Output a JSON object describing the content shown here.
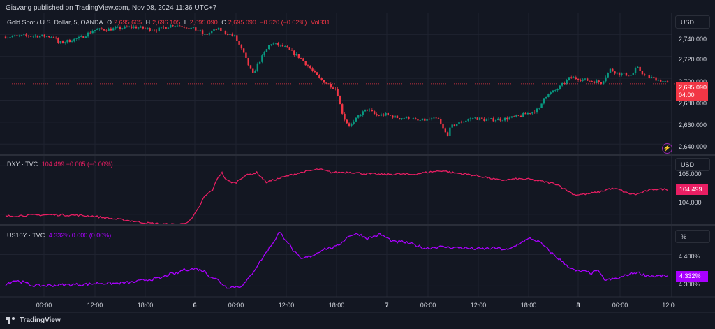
{
  "header": {
    "published": "Giavang published on TradingView.com, Nov 08, 2024 11:36 UTC+7"
  },
  "footer": {
    "brand": "TradingView"
  },
  "colors": {
    "background": "#131722",
    "grid": "#1f2330",
    "up": "#089981",
    "down": "#f23645",
    "dxy": "#e91e63",
    "us10y": "#aa00ff"
  },
  "x_axis": {
    "labels": [
      {
        "text": "06:00",
        "bold": false
      },
      {
        "text": "12:00",
        "bold": false
      },
      {
        "text": "18:00",
        "bold": false
      },
      {
        "text": "6",
        "bold": true
      },
      {
        "text": "06:00",
        "bold": false
      },
      {
        "text": "12:00",
        "bold": false
      },
      {
        "text": "18:00",
        "bold": false
      },
      {
        "text": "7",
        "bold": true
      },
      {
        "text": "06:00",
        "bold": false
      },
      {
        "text": "12:00",
        "bold": false
      },
      {
        "text": "18:00",
        "bold": false
      },
      {
        "text": "8",
        "bold": true
      },
      {
        "text": "06:00",
        "bold": false
      },
      {
        "text": "12:0",
        "bold": false
      }
    ]
  },
  "chart_data": [
    {
      "type": "candlestick",
      "name": "Gold Spot / U.S. Dollar, 5, OANDA",
      "ohlc": {
        "O": "2,695.605",
        "H": "2,696.105",
        "L": "2,695.090",
        "C": "2,695.090",
        "change": "−0.520 (−0.02%)",
        "vol": "Vol331"
      },
      "unit": "USD",
      "ylim": [
        2630,
        2760
      ],
      "y_ticks": [
        "2,740.000",
        "2,720.000",
        "2,700.000",
        "2,680.000",
        "2,660.000",
        "2,640.000"
      ],
      "last_price": "2,695.090",
      "countdown": "04:00",
      "path": [
        [
          0,
          2738
        ],
        [
          6,
          2739
        ],
        [
          11,
          2738
        ],
        [
          12,
          2732
        ],
        [
          17,
          2737
        ],
        [
          20,
          2744
        ],
        [
          24,
          2745
        ],
        [
          29,
          2747
        ],
        [
          34,
          2744
        ],
        [
          38,
          2749
        ],
        [
          41,
          2747
        ],
        [
          44,
          2743
        ],
        [
          45,
          2739
        ],
        [
          48,
          2745
        ],
        [
          52,
          2738
        ],
        [
          54,
          2722
        ],
        [
          56,
          2703
        ],
        [
          57,
          2712
        ],
        [
          60,
          2732
        ],
        [
          63,
          2729
        ],
        [
          67,
          2718
        ],
        [
          71,
          2700
        ],
        [
          75,
          2690
        ],
        [
          76,
          2672
        ],
        [
          77,
          2661
        ],
        [
          78,
          2657
        ],
        [
          79,
          2660
        ],
        [
          80,
          2666
        ],
        [
          82,
          2672
        ],
        [
          84,
          2666
        ],
        [
          86,
          2667
        ],
        [
          89,
          2664
        ],
        [
          92,
          2664
        ],
        [
          93,
          2661
        ],
        [
          95,
          2662
        ],
        [
          98,
          2663
        ],
        [
          99,
          2655
        ],
        [
          100,
          2648
        ],
        [
          101,
          2656
        ],
        [
          103,
          2660
        ],
        [
          106,
          2664
        ],
        [
          109,
          2662
        ],
        [
          113,
          2663
        ],
        [
          116,
          2665
        ],
        [
          119,
          2669
        ],
        [
          121,
          2672
        ],
        [
          122,
          2683
        ],
        [
          125,
          2690
        ],
        [
          128,
          2701
        ],
        [
          132,
          2698
        ],
        [
          134,
          2697
        ],
        [
          135,
          2696
        ],
        [
          137,
          2708
        ],
        [
          139,
          2704
        ],
        [
          142,
          2703
        ],
        [
          143,
          2710
        ],
        [
          145,
          2702
        ],
        [
          147,
          2700
        ],
        [
          150,
          2696
        ]
      ]
    },
    {
      "type": "line",
      "name": "DXY · TVC",
      "value_text": "104.499  −0.005 (−0.00%)",
      "unit": "USD",
      "ylim": [
        103.78,
        105.22
      ],
      "y_ticks": [
        "105.000",
        "104.000"
      ],
      "last_value": "104.499",
      "path": [
        [
          0,
          103.96
        ],
        [
          5,
          103.98
        ],
        [
          10,
          103.99
        ],
        [
          16,
          103.98
        ],
        [
          20,
          103.96
        ],
        [
          24,
          103.91
        ],
        [
          28,
          103.87
        ],
        [
          32,
          103.82
        ],
        [
          37,
          103.79
        ],
        [
          40,
          103.8
        ],
        [
          42,
          103.88
        ],
        [
          43,
          104.02
        ],
        [
          44,
          104.17
        ],
        [
          45,
          104.36
        ],
        [
          47,
          104.51
        ],
        [
          48,
          104.75
        ],
        [
          49,
          104.86
        ],
        [
          50,
          104.7
        ],
        [
          52,
          104.64
        ],
        [
          54,
          104.79
        ],
        [
          57,
          104.86
        ],
        [
          59,
          104.66
        ],
        [
          62,
          104.74
        ],
        [
          65,
          104.82
        ],
        [
          68,
          104.88
        ],
        [
          71,
          104.93
        ],
        [
          74,
          104.86
        ],
        [
          78,
          104.87
        ],
        [
          81,
          104.84
        ],
        [
          85,
          104.82
        ],
        [
          89,
          104.83
        ],
        [
          92,
          104.82
        ],
        [
          96,
          104.87
        ],
        [
          99,
          104.9
        ],
        [
          101,
          104.86
        ],
        [
          105,
          104.82
        ],
        [
          109,
          104.76
        ],
        [
          112,
          104.7
        ],
        [
          116,
          104.73
        ],
        [
          119,
          104.72
        ],
        [
          122,
          104.67
        ],
        [
          125,
          104.62
        ],
        [
          127,
          104.5
        ],
        [
          129,
          104.4
        ],
        [
          132,
          104.42
        ],
        [
          135,
          104.47
        ],
        [
          137,
          104.53
        ],
        [
          139,
          104.51
        ],
        [
          141,
          104.43
        ],
        [
          143,
          104.41
        ],
        [
          145,
          104.47
        ],
        [
          147,
          104.52
        ],
        [
          150,
          104.51
        ]
      ]
    },
    {
      "type": "line",
      "name": "US10Y · TVC",
      "value_text": "4.332%  0.000 (0.00%)",
      "unit": "%",
      "ylim": [
        4.265,
        4.495
      ],
      "y_ticks": [
        "4.400%",
        "4.300%"
      ],
      "last_value": "4.332%",
      "path": [
        [
          0,
          4.305
        ],
        [
          2,
          4.318
        ],
        [
          4,
          4.312
        ],
        [
          6,
          4.301
        ],
        [
          9,
          4.301
        ],
        [
          14,
          4.304
        ],
        [
          18,
          4.305
        ],
        [
          21,
          4.309
        ],
        [
          25,
          4.308
        ],
        [
          29,
          4.312
        ],
        [
          32,
          4.32
        ],
        [
          35,
          4.324
        ],
        [
          37,
          4.337
        ],
        [
          39,
          4.34
        ],
        [
          40,
          4.351
        ],
        [
          43,
          4.355
        ],
        [
          45,
          4.348
        ],
        [
          46,
          4.334
        ],
        [
          48,
          4.32
        ],
        [
          50,
          4.296
        ],
        [
          53,
          4.298
        ],
        [
          54,
          4.306
        ],
        [
          55,
          4.322
        ],
        [
          57,
          4.364
        ],
        [
          59,
          4.406
        ],
        [
          61,
          4.447
        ],
        [
          62,
          4.472
        ],
        [
          64,
          4.44
        ],
        [
          65,
          4.415
        ],
        [
          67,
          4.385
        ],
        [
          70,
          4.4
        ],
        [
          72,
          4.418
        ],
        [
          75,
          4.425
        ],
        [
          78,
          4.462
        ],
        [
          80,
          4.466
        ],
        [
          82,
          4.452
        ],
        [
          85,
          4.465
        ],
        [
          88,
          4.44
        ],
        [
          90,
          4.441
        ],
        [
          93,
          4.43
        ],
        [
          95,
          4.42
        ],
        [
          98,
          4.425
        ],
        [
          103,
          4.422
        ],
        [
          107,
          4.418
        ],
        [
          111,
          4.421
        ],
        [
          114,
          4.415
        ],
        [
          117,
          4.441
        ],
        [
          119,
          4.452
        ],
        [
          121,
          4.44
        ],
        [
          124,
          4.402
        ],
        [
          127,
          4.368
        ],
        [
          129,
          4.348
        ],
        [
          131,
          4.346
        ],
        [
          133,
          4.341
        ],
        [
          134,
          4.352
        ],
        [
          135,
          4.332
        ],
        [
          136,
          4.318
        ],
        [
          139,
          4.325
        ],
        [
          141,
          4.336
        ],
        [
          143,
          4.344
        ],
        [
          145,
          4.334
        ],
        [
          147,
          4.331
        ],
        [
          150,
          4.332
        ]
      ]
    }
  ]
}
